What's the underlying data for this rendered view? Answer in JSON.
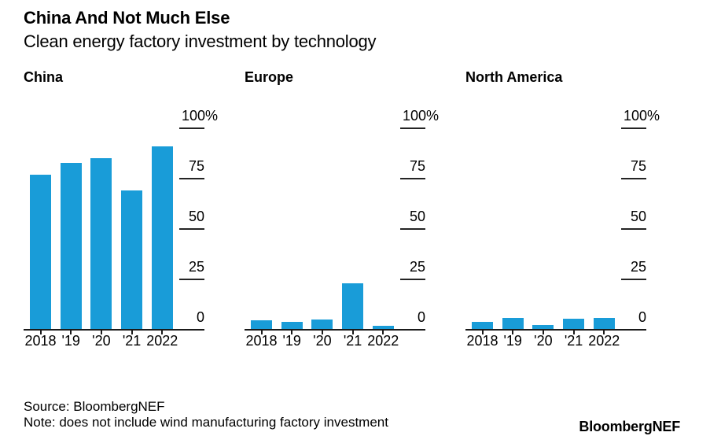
{
  "header": {
    "title": "China And Not Much Else",
    "subtitle": "Clean energy factory investment by technology"
  },
  "footer": {
    "source": "Source: BloombergNEF",
    "note": "Note: does not include wind manufacturing factory investment",
    "logo": "BloombergNEF"
  },
  "colors": {
    "bar": "#199cd8",
    "axis": "#1a1a1a",
    "text": "#000000",
    "background": "#ffffff"
  },
  "chart_data": [
    {
      "type": "bar",
      "title": "China",
      "categories": [
        "2018",
        "'19",
        "'20",
        "'21",
        "2022"
      ],
      "values": [
        77,
        83,
        85,
        69,
        91
      ],
      "ylim": [
        0,
        100
      ],
      "yticks": [
        100,
        75,
        50,
        25,
        0
      ],
      "ytick_labels": [
        "100%",
        "75",
        "50",
        "25",
        "0"
      ],
      "unit": "%",
      "grid": "right-side tick dashes",
      "legend": "none"
    },
    {
      "type": "bar",
      "title": "Europe",
      "categories": [
        "2018",
        "'19",
        "'20",
        "'21",
        "2022"
      ],
      "values": [
        4.5,
        4,
        5,
        23,
        2
      ],
      "ylim": [
        0,
        100
      ],
      "yticks": [
        100,
        75,
        50,
        25,
        0
      ],
      "ytick_labels": [
        "100%",
        "75",
        "50",
        "25",
        "0"
      ],
      "unit": "%",
      "grid": "right-side tick dashes",
      "legend": "none"
    },
    {
      "type": "bar",
      "title": "North America",
      "categories": [
        "2018",
        "'19",
        "'20",
        "'21",
        "2022"
      ],
      "values": [
        4,
        6,
        2.5,
        5.5,
        6
      ],
      "ylim": [
        0,
        100
      ],
      "yticks": [
        100,
        75,
        50,
        25,
        0
      ],
      "ytick_labels": [
        "100%",
        "75",
        "50",
        "25",
        "0"
      ],
      "unit": "%",
      "grid": "right-side tick dashes",
      "legend": "none"
    }
  ]
}
